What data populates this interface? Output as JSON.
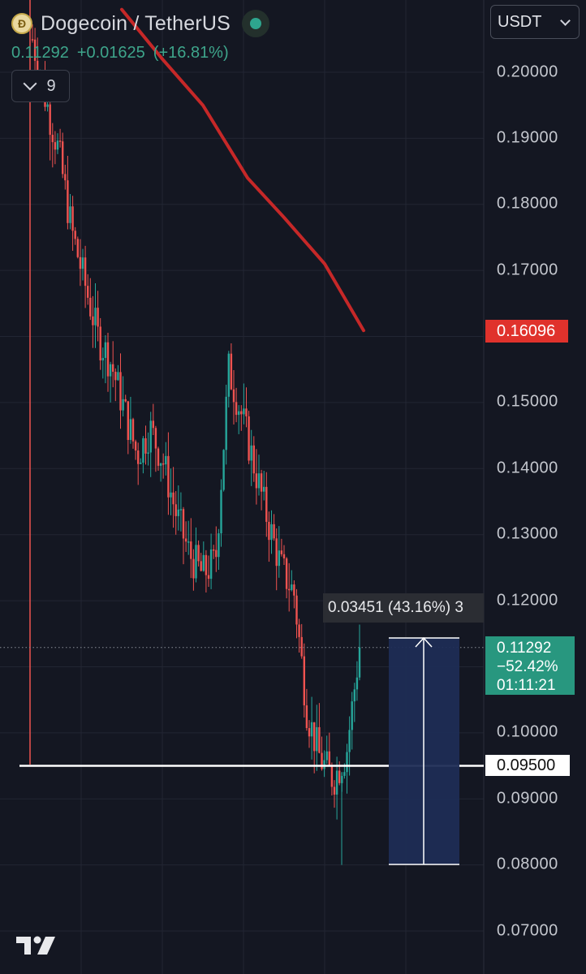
{
  "header": {
    "pair": "Dogecoin / TetherUS",
    "last_price": "0.11292",
    "change": "+0.01625",
    "change_pct": "(+16.81%)",
    "collapse_count": "9"
  },
  "currency_select": {
    "value": "USDT"
  },
  "price_axis": {
    "ticks": [
      "0.20000",
      "0.19000",
      "0.18000",
      "0.17000",
      "0.15000",
      "0.14000",
      "0.13000",
      "0.12000",
      "0.10000",
      "0.09000",
      "0.08000",
      "0.07000"
    ]
  },
  "labels": {
    "ma_value": "0.16096",
    "last_price": "0.11292",
    "last_change_pct": "−52.42%",
    "countdown": "01:11:21",
    "support_level": "0.09500",
    "measure": "0.03451 (43.16%) 3"
  },
  "colors": {
    "background": "#141722",
    "up": "#26a69a",
    "down": "#ef5350",
    "moving_average": "#c62828",
    "support_line": "#ffffff",
    "measure_fill": "#1e2c55"
  },
  "chart_data": {
    "type": "candlestick",
    "title": "Dogecoin / TetherUS",
    "ylabel": "USDT",
    "ylim": [
      0.0655,
      0.2105
    ],
    "y_ticks": [
      0.2,
      0.19,
      0.18,
      0.17,
      0.16,
      0.15,
      0.14,
      0.13,
      0.12,
      0.11,
      0.1,
      0.09,
      0.08,
      0.07
    ],
    "close_path": [
      0.205,
      0.196,
      0.188,
      0.176,
      0.168,
      0.16,
      0.156,
      0.149,
      0.142,
      0.146,
      0.141,
      0.133,
      0.127,
      0.124,
      0.126,
      0.155,
      0.148,
      0.14,
      0.132,
      0.125,
      0.121,
      0.103,
      0.096,
      0.093,
      0.097,
      0.1129
    ],
    "moving_average": [
      0.2095,
      0.202,
      0.195,
      0.184,
      0.178,
      0.171,
      0.1609
    ],
    "support_level": 0.095,
    "last_price": 0.11292,
    "measure": {
      "from": 0.08,
      "to": 0.1145,
      "change": 0.03451,
      "change_pct": 43.16
    },
    "grid": true
  }
}
